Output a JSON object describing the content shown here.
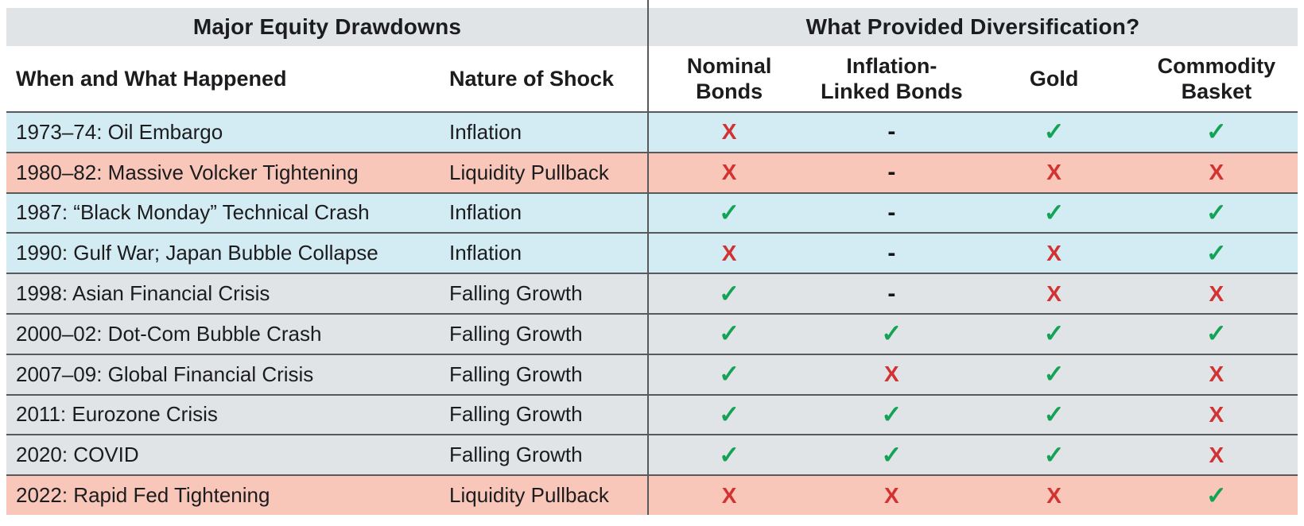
{
  "chart_data": {
    "type": "table",
    "group_headers": [
      {
        "label": "Major Equity Drawdowns",
        "span_columns": 2
      },
      {
        "label": "What Provided Diversification?",
        "span_columns": 4
      }
    ],
    "columns": [
      {
        "key": "event",
        "label": "When and What Happened"
      },
      {
        "key": "shock",
        "label": "Nature of Shock"
      },
      {
        "key": "nominal_bonds",
        "label": "Nominal\nBonds"
      },
      {
        "key": "inflation_linked_bonds",
        "label": "Inflation-\nLinked Bonds"
      },
      {
        "key": "gold",
        "label": "Gold"
      },
      {
        "key": "commodity_basket",
        "label": "Commodity\nBasket"
      }
    ],
    "symbols": {
      "check": "✓",
      "cross": "X",
      "none": "-"
    },
    "rows": [
      {
        "event": "1973–74: Oil Embargo",
        "shock": "Inflation",
        "row_color": "blue",
        "marks": [
          "cross",
          "none",
          "check",
          "check"
        ]
      },
      {
        "event": "1980–82: Massive Volcker Tightening",
        "shock": "Liquidity Pullback",
        "row_color": "red",
        "marks": [
          "cross",
          "none",
          "cross",
          "cross"
        ]
      },
      {
        "event": "1987: “Black Monday” Technical Crash",
        "shock": "Inflation",
        "row_color": "blue",
        "marks": [
          "check",
          "none",
          "check",
          "check"
        ]
      },
      {
        "event": "1990: Gulf War; Japan Bubble Collapse",
        "shock": "Inflation",
        "row_color": "blue",
        "marks": [
          "cross",
          "none",
          "cross",
          "check"
        ]
      },
      {
        "event": "1998: Asian Financial Crisis",
        "shock": "Falling Growth",
        "row_color": "gray",
        "marks": [
          "check",
          "none",
          "cross",
          "cross"
        ]
      },
      {
        "event": "2000–02: Dot-Com Bubble Crash",
        "shock": "Falling Growth",
        "row_color": "gray",
        "marks": [
          "check",
          "check",
          "check",
          "check"
        ]
      },
      {
        "event": "2007–09: Global Financial Crisis",
        "shock": "Falling Growth",
        "row_color": "gray",
        "marks": [
          "check",
          "cross",
          "check",
          "cross"
        ]
      },
      {
        "event": "2011: Eurozone Crisis",
        "shock": "Falling Growth",
        "row_color": "gray",
        "marks": [
          "check",
          "check",
          "check",
          "cross"
        ]
      },
      {
        "event": "2020: COVID",
        "shock": "Falling Growth",
        "row_color": "gray",
        "marks": [
          "check",
          "check",
          "check",
          "cross"
        ]
      },
      {
        "event": "2022: Rapid Fed Tightening",
        "shock": "Liquidity Pullback",
        "row_color": "red",
        "marks": [
          "cross",
          "cross",
          "cross",
          "check"
        ]
      }
    ]
  },
  "colors": {
    "header_band": "#e0e4e6",
    "row_blue": "#d3ecf3",
    "row_red": "#f8c7b9",
    "row_gray": "#e0e4e6",
    "grid_line": "#58595b",
    "check_green": "#14a356",
    "cross_red": "#d23232"
  }
}
